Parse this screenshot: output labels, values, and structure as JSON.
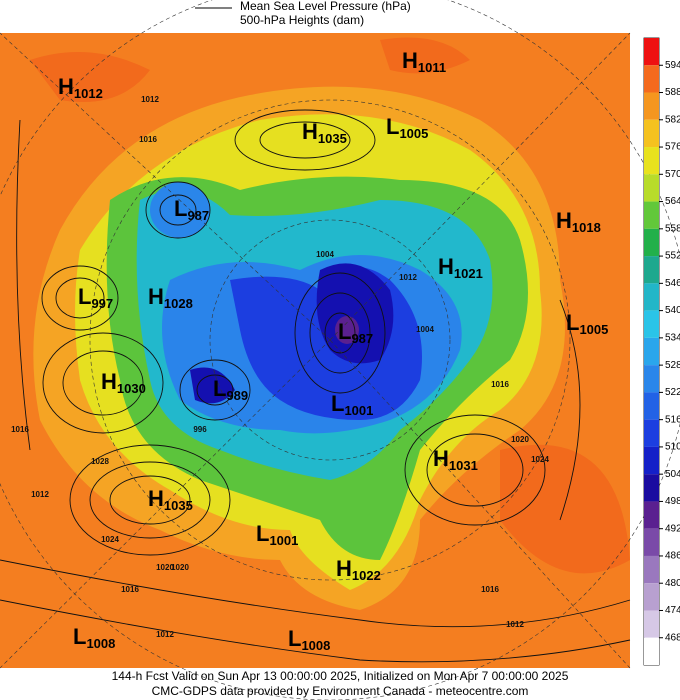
{
  "header": {
    "legend_line": "Mean Sea Level Pressure (hPa)",
    "legend_fill": "500-hPa Heights (dam)"
  },
  "centers": [
    {
      "letter": "H",
      "value": 1012
    },
    {
      "letter": "H",
      "value": 1011
    },
    {
      "letter": "H",
      "value": 1035
    },
    {
      "letter": "L",
      "value": 1005
    },
    {
      "letter": "L",
      "value": 987
    },
    {
      "letter": "H",
      "value": 1018
    },
    {
      "letter": "H",
      "value": 1021
    },
    {
      "letter": "L",
      "value": 997
    },
    {
      "letter": "H",
      "value": 1028
    },
    {
      "letter": "L",
      "value": 1005
    },
    {
      "letter": "L",
      "value": 987
    },
    {
      "letter": "H",
      "value": 1030
    },
    {
      "letter": "L",
      "value": 989
    },
    {
      "letter": "L",
      "value": 1001
    },
    {
      "letter": "H",
      "value": 1031
    },
    {
      "letter": "H",
      "value": 1035
    },
    {
      "letter": "L",
      "value": 1001
    },
    {
      "letter": "H",
      "value": 1022
    },
    {
      "letter": "L",
      "value": 1008
    },
    {
      "letter": "L",
      "value": 1008
    }
  ],
  "isobar_labels": [
    1012,
    1016,
    1020,
    1028,
    1016,
    1024,
    1020,
    1016,
    1012,
    996,
    1004,
    1012,
    1016,
    1020,
    1024,
    1016,
    1012,
    1012,
    1004
  ],
  "colorbar": {
    "levels": [
      594,
      588,
      582,
      576,
      570,
      564,
      558,
      552,
      546,
      540,
      534,
      528,
      522,
      516,
      510,
      504,
      498,
      492,
      486,
      480,
      474,
      468
    ],
    "colors": [
      "#ee1111",
      "#f46a1e",
      "#f5961f",
      "#f5c21f",
      "#e8e21e",
      "#b8dc2a",
      "#62c83a",
      "#22b04a",
      "#1ea88e",
      "#22b6c8",
      "#2ac4e8",
      "#2aa6ec",
      "#2a86ea",
      "#2262e6",
      "#1c3ee0",
      "#1420c8",
      "#1a0ca0",
      "#5a2090",
      "#7a4aa8",
      "#9a78be",
      "#b8a0d0",
      "#d6c8e6",
      "#ffffff"
    ]
  },
  "footer": {
    "line1": "144-h Fcst Valid on Sun Apr 13 00:00:00 2025, Initialized on Mon Apr  7 00:00:00 2025",
    "line2": "CMC-GDPS data provided by Environment Canada - meteocentre.com"
  }
}
